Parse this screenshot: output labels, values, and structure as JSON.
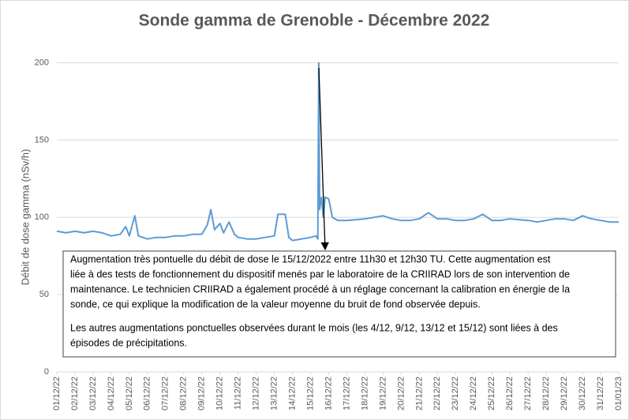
{
  "chart_data": {
    "type": "line",
    "title": "Sonde gamma de Grenoble - Décembre 2022",
    "y_label": "Débit de dose gamma (nSv/h)",
    "xlim": [
      1,
      32
    ],
    "ylim": [
      0,
      210
    ],
    "yticks": [
      0,
      50,
      100,
      150,
      200
    ],
    "grid": true,
    "xticks": [
      {
        "value": 1,
        "label": "01/12/22"
      },
      {
        "value": 2,
        "label": "02/12/22"
      },
      {
        "value": 3,
        "label": "03/12/22"
      },
      {
        "value": 4,
        "label": "04/12/22"
      },
      {
        "value": 5,
        "label": "05/12/22"
      },
      {
        "value": 6,
        "label": "06/12/22"
      },
      {
        "value": 7,
        "label": "07/12/22"
      },
      {
        "value": 8,
        "label": "08/12/22"
      },
      {
        "value": 9,
        "label": "09/12/22"
      },
      {
        "value": 10,
        "label": "10/12/22"
      },
      {
        "value": 11,
        "label": "11/12/22"
      },
      {
        "value": 12,
        "label": "12/12/22"
      },
      {
        "value": 13,
        "label": "13/12/22"
      },
      {
        "value": 14,
        "label": "14/12/22"
      },
      {
        "value": 15,
        "label": "15/12/22"
      },
      {
        "value": 16,
        "label": "16/12/22"
      },
      {
        "value": 17,
        "label": "17/12/22"
      },
      {
        "value": 18,
        "label": "18/12/22"
      },
      {
        "value": 19,
        "label": "19/12/22"
      },
      {
        "value": 20,
        "label": "20/12/22"
      },
      {
        "value": 21,
        "label": "21/12/22"
      },
      {
        "value": 22,
        "label": "22/12/22"
      },
      {
        "value": 23,
        "label": "23/12/22"
      },
      {
        "value": 24,
        "label": "24/12/22"
      },
      {
        "value": 25,
        "label": "25/12/22"
      },
      {
        "value": 26,
        "label": "26/12/22"
      },
      {
        "value": 27,
        "label": "27/12/22"
      },
      {
        "value": 28,
        "label": "28/12/22"
      },
      {
        "value": 29,
        "label": "29/12/22"
      },
      {
        "value": 30,
        "label": "30/12/22"
      },
      {
        "value": 31,
        "label": "31/12/22"
      },
      {
        "value": 32,
        "label": "01/01/23"
      }
    ],
    "color": "#5b9bd5",
    "x": [
      1,
      1.5,
      2,
      2.5,
      3,
      3.5,
      4,
      4.5,
      4.8,
      5,
      5.3,
      5.5,
      6,
      6.5,
      7,
      7.5,
      8,
      8.5,
      9,
      9.3,
      9.5,
      9.7,
      10,
      10.2,
      10.5,
      10.8,
      11,
      11.5,
      12,
      12.5,
      13,
      13.2,
      13.6,
      13.8,
      14,
      14.5,
      15,
      15.3,
      15.4,
      15.45,
      15.5,
      15.6,
      15.7,
      15.8,
      16,
      16.2,
      16.5,
      17,
      18,
      18.5,
      19,
      19.5,
      20,
      20.5,
      21,
      21.5,
      22,
      22.5,
      23,
      23.5,
      24,
      24.5,
      25,
      25.5,
      26,
      27,
      27.5,
      28,
      28.5,
      29,
      29.5,
      30,
      30.5,
      31,
      31.5,
      32
    ],
    "values": [
      91,
      90,
      91,
      90,
      91,
      90,
      88,
      89,
      94,
      88,
      101,
      88,
      86,
      87,
      87,
      88,
      88,
      89,
      89,
      95,
      105,
      92,
      96,
      90,
      97,
      89,
      87,
      86,
      86,
      87,
      88,
      102,
      102,
      87,
      85,
      86,
      87,
      88,
      86,
      200,
      105,
      113,
      100,
      113,
      112,
      100,
      98,
      98,
      99,
      100,
      101,
      99,
      98,
      98,
      99,
      103,
      99,
      99,
      98,
      98,
      99,
      102,
      98,
      98,
      99,
      98,
      97,
      98,
      99,
      99,
      98,
      101,
      99,
      98,
      97,
      97
    ],
    "annotation": {
      "paragraph1": [
        "Augmentation très pontuelle du débit de dose le 15/12/2022  entre 11h30  et 12h30 TU.  Cette augmentation est",
        "liée à des tests de fonctionnement du dispositif menés par le laboratoire de la CRIIRAD lors de son intervention de",
        "maintenance. Le technicien CRIIRAD a également procédé à un réglage concernant la calibration en énergie de la",
        "sonde, ce qui explique la modification de la valeur moyenne du bruit de fond observée depuis."
      ],
      "paragraph2": [
        "Les autres augmentations ponctuelles observées durant le mois (les 4/12, 9/12,  13/12  et 15/12)  sont liées à des",
        "épisodes de précipitations."
      ]
    }
  }
}
